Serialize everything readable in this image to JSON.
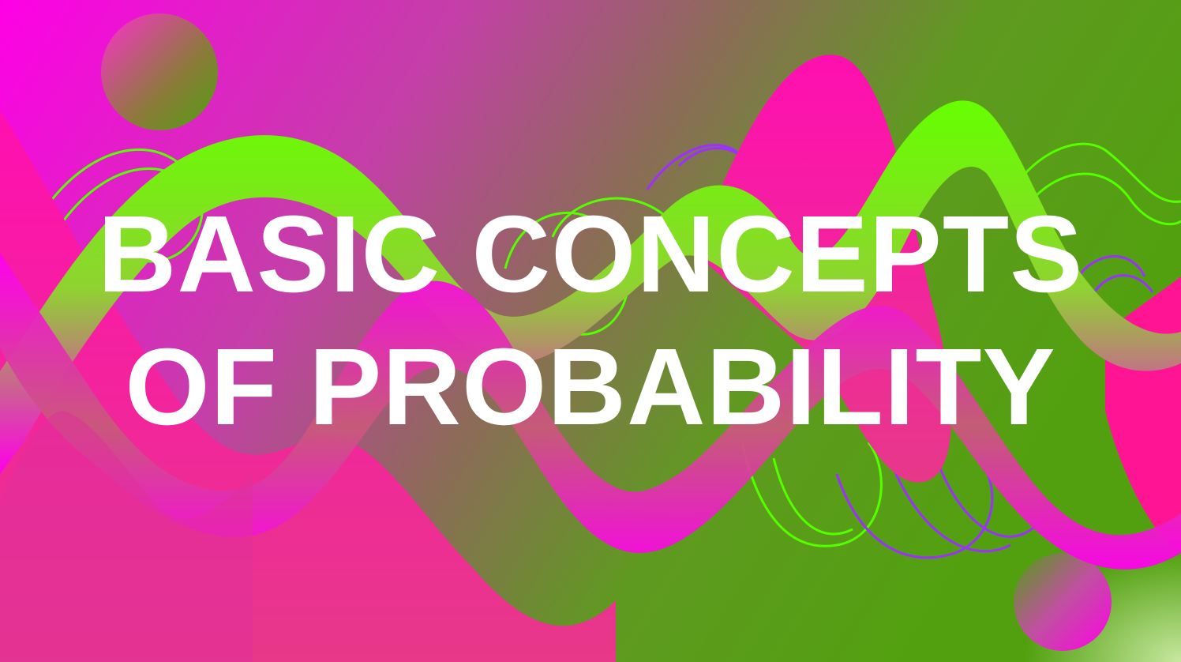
{
  "slide": {
    "title_line_1": "BASIC CONCEPTS",
    "title_line_2": "OF PROBABILITY"
  },
  "colors": {
    "magenta": "#ff00dd",
    "hot_pink": "#ff1493",
    "neon_green": "#55ff00",
    "olive_green": "#5a9e14",
    "purple_line": "#9b30ff",
    "title_text": "#ffffff"
  }
}
